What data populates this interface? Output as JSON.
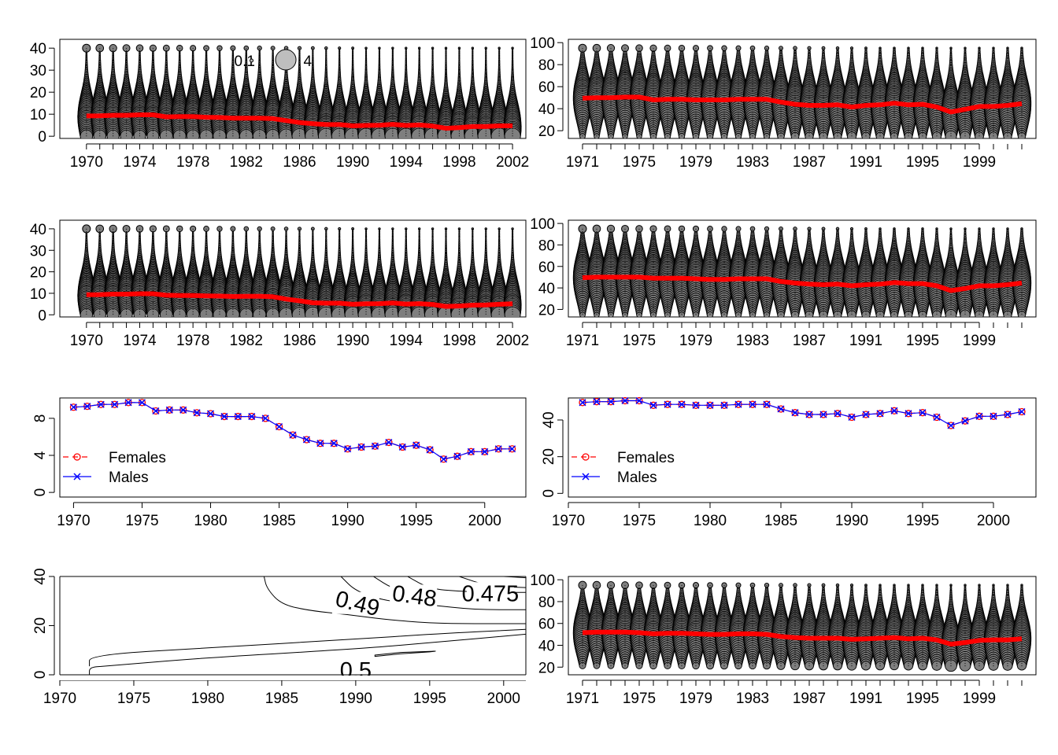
{
  "colors": {
    "mean_line": "#ff0000",
    "bubble_fill": "#7f7f7f",
    "bubble_stroke": "#000000",
    "females": "#ff0000",
    "males": "#0000ff",
    "legend_bubble": "#bebebe"
  },
  "chart_data": [
    {
      "id": "p1",
      "type": "bubble",
      "xlim": [
        1968,
        2003
      ],
      "ylim": [
        -1,
        44
      ],
      "year_start": 1970,
      "year_end": 2002,
      "x_ticks": [
        1970,
        1974,
        1978,
        1982,
        1986,
        1990,
        1994,
        1998,
        2002
      ],
      "y_ticks": [
        0,
        10,
        20,
        30,
        40
      ],
      "ymin": 0,
      "ymax": 40,
      "legend": {
        "small": "0.1",
        "large": "4"
      },
      "mean": {
        "x": [
          1970,
          1971,
          1972,
          1973,
          1974,
          1975,
          1976,
          1977,
          1978,
          1979,
          1980,
          1981,
          1982,
          1983,
          1984,
          1985,
          1986,
          1987,
          1988,
          1989,
          1990,
          1991,
          1992,
          1993,
          1994,
          1995,
          1996,
          1997,
          1998,
          1999,
          2000,
          2001,
          2002
        ],
        "y": [
          9.2,
          9.3,
          9.5,
          9.5,
          9.7,
          9.7,
          8.8,
          8.9,
          8.9,
          8.6,
          8.5,
          8.2,
          8.2,
          8.2,
          8.0,
          7.1,
          6.2,
          5.7,
          5.3,
          5.3,
          4.7,
          4.9,
          5.0,
          5.4,
          4.9,
          5.1,
          4.6,
          3.6,
          3.9,
          4.4,
          4.4,
          4.7,
          4.7
        ]
      }
    },
    {
      "id": "p2",
      "type": "bubble",
      "xlim": [
        1970,
        2003
      ],
      "ylim": [
        13,
        103
      ],
      "year_start": 1971,
      "year_end": 2002,
      "x_ticks": [
        1971,
        1975,
        1979,
        1983,
        1987,
        1991,
        1995,
        1999
      ],
      "y_ticks": [
        20,
        40,
        60,
        80,
        100
      ],
      "ymin": 15,
      "ymax": 95,
      "mean": {
        "x": [
          1971,
          1972,
          1973,
          1974,
          1975,
          1976,
          1977,
          1978,
          1979,
          1980,
          1981,
          1982,
          1983,
          1984,
          1985,
          1986,
          1987,
          1988,
          1989,
          1990,
          1991,
          1992,
          1993,
          1994,
          1995,
          1996,
          1997,
          1998,
          1999,
          2000,
          2001,
          2002
        ],
        "y": [
          49.5,
          50,
          50,
          50.5,
          50.5,
          48,
          48.5,
          48.5,
          48,
          48,
          48,
          48.5,
          48.5,
          48.5,
          46,
          44,
          43,
          43,
          43.5,
          41.5,
          43,
          43.5,
          45,
          43.5,
          44,
          41.5,
          37,
          39.5,
          42,
          42,
          43,
          44.5
        ]
      }
    },
    {
      "id": "p3",
      "type": "bubble",
      "xlim": [
        1968,
        2003
      ],
      "ylim": [
        -1,
        44
      ],
      "year_start": 1970,
      "year_end": 2002,
      "x_ticks": [
        1970,
        1974,
        1978,
        1982,
        1986,
        1990,
        1994,
        1998,
        2002
      ],
      "y_ticks": [
        0,
        10,
        20,
        30,
        40
      ],
      "ymin": 0,
      "ymax": 40,
      "mean": {
        "x": [
          1970,
          1971,
          1972,
          1973,
          1974,
          1975,
          1976,
          1977,
          1978,
          1979,
          1980,
          1981,
          1982,
          1983,
          1984,
          1985,
          1986,
          1987,
          1988,
          1989,
          1990,
          1991,
          1992,
          1993,
          1994,
          1995,
          1996,
          1997,
          1998,
          1999,
          2000,
          2001,
          2002
        ],
        "y": [
          9.3,
          9.4,
          9.6,
          9.6,
          9.8,
          9.8,
          9.1,
          9.0,
          9.0,
          8.8,
          8.7,
          8.5,
          8.6,
          8.6,
          8.4,
          7.3,
          6.5,
          5.6,
          5.4,
          5.4,
          4.9,
          5.1,
          5.2,
          5.5,
          5.0,
          5.2,
          4.8,
          3.9,
          4.1,
          4.5,
          4.6,
          4.9,
          5.1
        ]
      }
    },
    {
      "id": "p4",
      "type": "bubble",
      "xlim": [
        1970,
        2003
      ],
      "ylim": [
        13,
        103
      ],
      "year_start": 1971,
      "year_end": 2002,
      "x_ticks": [
        1971,
        1975,
        1979,
        1983,
        1987,
        1991,
        1995,
        1999
      ],
      "y_ticks": [
        20,
        40,
        60,
        80,
        100
      ],
      "ymin": 15,
      "ymax": 95,
      "mean": {
        "x": [
          1971,
          1972,
          1973,
          1974,
          1975,
          1976,
          1977,
          1978,
          1979,
          1980,
          1981,
          1982,
          1983,
          1984,
          1985,
          1986,
          1987,
          1988,
          1989,
          1990,
          1991,
          1992,
          1993,
          1994,
          1995,
          1996,
          1997,
          1998,
          1999,
          2000,
          2001,
          2002
        ],
        "y": [
          49.5,
          50,
          50,
          50,
          50,
          49,
          49,
          49,
          48.5,
          48,
          48,
          48.5,
          48.5,
          48.5,
          46,
          44.5,
          43.5,
          43,
          43.5,
          42,
          43,
          43.5,
          45,
          44,
          44,
          42,
          37.5,
          39.5,
          42,
          42,
          43,
          44.5
        ]
      }
    },
    {
      "id": "p5",
      "type": "line",
      "xlim": [
        1969,
        2003
      ],
      "ylim": [
        -0.5,
        10.2
      ],
      "x_ticks": [
        1970,
        1975,
        1980,
        1985,
        1990,
        1995,
        2000
      ],
      "y_ticks": [
        0,
        4,
        8
      ],
      "legend": [
        "Females",
        "Males"
      ],
      "series": [
        {
          "name": "Females",
          "x": [
            1970,
            1971,
            1972,
            1973,
            1974,
            1975,
            1976,
            1977,
            1978,
            1979,
            1980,
            1981,
            1982,
            1983,
            1984,
            1985,
            1986,
            1987,
            1988,
            1989,
            1990,
            1991,
            1992,
            1993,
            1994,
            1995,
            1996,
            1997,
            1998,
            1999,
            2000,
            2001,
            2002
          ],
          "y": [
            9.2,
            9.3,
            9.5,
            9.5,
            9.7,
            9.7,
            8.8,
            8.9,
            8.9,
            8.6,
            8.5,
            8.2,
            8.2,
            8.2,
            8.0,
            7.1,
            6.2,
            5.7,
            5.3,
            5.3,
            4.7,
            4.9,
            5.0,
            5.4,
            4.9,
            5.1,
            4.6,
            3.6,
            3.9,
            4.4,
            4.4,
            4.7,
            4.7
          ]
        },
        {
          "name": "Males",
          "x": [
            1970,
            1971,
            1972,
            1973,
            1974,
            1975,
            1976,
            1977,
            1978,
            1979,
            1980,
            1981,
            1982,
            1983,
            1984,
            1985,
            1986,
            1987,
            1988,
            1989,
            1990,
            1991,
            1992,
            1993,
            1994,
            1995,
            1996,
            1997,
            1998,
            1999,
            2000,
            2001,
            2002
          ],
          "y": [
            9.2,
            9.3,
            9.5,
            9.5,
            9.7,
            9.7,
            8.8,
            8.9,
            8.9,
            8.6,
            8.5,
            8.2,
            8.2,
            8.2,
            8.0,
            7.1,
            6.2,
            5.7,
            5.3,
            5.3,
            4.7,
            4.9,
            5.0,
            5.4,
            4.9,
            5.1,
            4.6,
            3.6,
            3.9,
            4.4,
            4.4,
            4.7,
            4.7
          ]
        }
      ]
    },
    {
      "id": "p6",
      "type": "line",
      "xlim": [
        1970,
        2003
      ],
      "ylim": [
        -2,
        52
      ],
      "x_ticks": [
        1970,
        1975,
        1980,
        1985,
        1990,
        1995,
        2000
      ],
      "y_ticks": [
        0,
        20,
        40
      ],
      "legend": [
        "Females",
        "Males"
      ],
      "series": [
        {
          "name": "Females",
          "x": [
            1971,
            1972,
            1973,
            1974,
            1975,
            1976,
            1977,
            1978,
            1979,
            1980,
            1981,
            1982,
            1983,
            1984,
            1985,
            1986,
            1987,
            1988,
            1989,
            1990,
            1991,
            1992,
            1993,
            1994,
            1995,
            1996,
            1997,
            1998,
            1999,
            2000,
            2001,
            2002
          ],
          "y": [
            49.5,
            50,
            50,
            50.5,
            50.5,
            48,
            48.5,
            48.5,
            48,
            48,
            48,
            48.5,
            48.5,
            48.5,
            46,
            44,
            43,
            43,
            43.5,
            41.5,
            43,
            43.5,
            45,
            43.5,
            44,
            41.5,
            37,
            39.5,
            42,
            42,
            43,
            44.5
          ]
        },
        {
          "name": "Males",
          "x": [
            1971,
            1972,
            1973,
            1974,
            1975,
            1976,
            1977,
            1978,
            1979,
            1980,
            1981,
            1982,
            1983,
            1984,
            1985,
            1986,
            1987,
            1988,
            1989,
            1990,
            1991,
            1992,
            1993,
            1994,
            1995,
            1996,
            1997,
            1998,
            1999,
            2000,
            2001,
            2002
          ],
          "y": [
            49.5,
            50,
            50,
            50.5,
            50.5,
            48,
            48.5,
            48.5,
            48,
            48,
            48,
            48.5,
            48.5,
            48.5,
            46,
            44,
            43,
            43,
            43.5,
            41.5,
            43,
            43.5,
            45,
            43.5,
            44,
            41.5,
            37,
            39.5,
            42,
            42,
            43,
            44.5
          ]
        }
      ]
    },
    {
      "id": "p7",
      "type": "contour",
      "xlim": [
        1970,
        2001.5
      ],
      "ylim": [
        0,
        40
      ],
      "x_ticks": [
        1970,
        1975,
        1980,
        1985,
        1990,
        1995,
        2000
      ],
      "y_ticks": [
        0,
        20,
        40
      ],
      "contours": [
        {
          "level": "0.49",
          "points": [
            [
              1983.8,
              40
            ],
            [
              1984,
              35
            ],
            [
              1985,
              28.5
            ],
            [
              1987,
              26
            ],
            [
              1989.5,
              24.5
            ],
            [
              1992,
              22.5
            ],
            [
              1995,
              21
            ],
            [
              1998,
              20.8
            ],
            [
              2001.5,
              20.8
            ]
          ]
        },
        {
          "level": "0.48",
          "points": [
            [
              1989,
              40
            ],
            [
              1990,
              34
            ],
            [
              1992,
              30
            ],
            [
              1995,
              28.5
            ],
            [
              1998,
              26.5
            ],
            [
              2001.5,
              26.5
            ]
          ]
        },
        {
          "level": "",
          "points": [
            [
              1991.2,
              40
            ],
            [
              1992.5,
              35
            ],
            [
              1994,
              33
            ]
          ]
        },
        {
          "level": "",
          "points": [
            [
              1993.5,
              40
            ],
            [
              1995,
              35
            ],
            [
              1997,
              34
            ],
            [
              1999,
              33.5
            ],
            [
              2001.5,
              33.5
            ]
          ]
        },
        {
          "level": "0.475",
          "points": [
            [
              1997,
              40
            ],
            [
              1999,
              36
            ],
            [
              2001.5,
              35.5
            ]
          ]
        },
        {
          "level": "",
          "points": [
            [
              2000,
              40
            ],
            [
              2001.5,
              39.5
            ]
          ]
        },
        {
          "level": "",
          "points": [
            [
              1972,
              0
            ],
            [
              1972,
              3
            ],
            [
              1973,
              3.5
            ],
            [
              1980,
              7
            ],
            [
              1990,
              10.5
            ],
            [
              1995,
              13
            ],
            [
              2001.5,
              16.5
            ]
          ]
        },
        {
          "level": "",
          "points": [
            [
              1972,
              3.5
            ],
            [
              1972,
              8
            ],
            [
              1980,
              11
            ],
            [
              1990,
              14.5
            ],
            [
              1995,
              16.5
            ],
            [
              2001.5,
              18.5
            ]
          ]
        }
      ],
      "closed": [
        {
          "points": [
            [
              1991.3,
              7.5
            ],
            [
              1993,
              8.5
            ],
            [
              1995,
              9.3
            ],
            [
              1995.4,
              9.6
            ],
            [
              1993,
              9.1
            ],
            [
              1991.3,
              8.0
            ],
            [
              1991.3,
              7.5
            ]
          ]
        }
      ],
      "label_05": "0.5"
    },
    {
      "id": "p8",
      "type": "bubble",
      "xlim": [
        1970,
        2003
      ],
      "ylim": [
        13,
        103
      ],
      "year_start": 1971,
      "year_end": 2002,
      "x_ticks": [
        1971,
        1975,
        1979,
        1983,
        1987,
        1991,
        1995,
        1999
      ],
      "y_ticks": [
        20,
        40,
        60,
        80,
        100
      ],
      "ymin": 20,
      "ymax": 95,
      "mean": {
        "x": [
          1971,
          1972,
          1973,
          1974,
          1975,
          1976,
          1977,
          1978,
          1979,
          1980,
          1981,
          1982,
          1983,
          1984,
          1985,
          1986,
          1987,
          1988,
          1989,
          1990,
          1991,
          1992,
          1993,
          1994,
          1995,
          1996,
          1997,
          1998,
          1999,
          2000,
          2001,
          2002
        ],
        "y": [
          51.5,
          52,
          52,
          52,
          51.5,
          50.5,
          51,
          51,
          50.5,
          50,
          50,
          50.5,
          50.5,
          50,
          48,
          47,
          46.5,
          46.5,
          46.5,
          45.5,
          46,
          46.5,
          47,
          46,
          46.5,
          45,
          41,
          42.5,
          44.5,
          45,
          45,
          46
        ]
      }
    }
  ]
}
